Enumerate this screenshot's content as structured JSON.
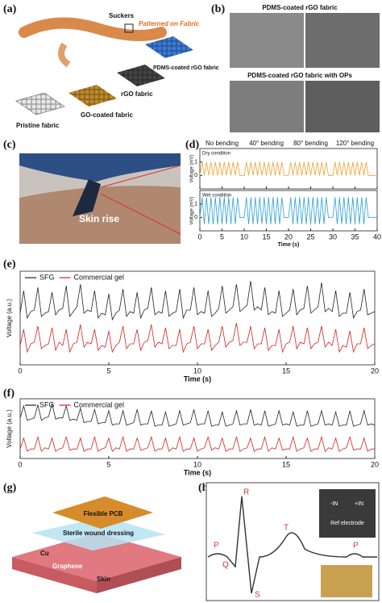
{
  "panel_labels": [
    "(a)",
    "(b)",
    "(c)",
    "(d)",
    "(e)",
    "(f)",
    "(g)",
    "(h)"
  ],
  "panel_a": {
    "labels": [
      "Suckers",
      "Patterned on Fabric",
      "PDMS-coated rGO fabric",
      "rGO fabric",
      "GO-coated fabric",
      "Pristine fabric"
    ]
  },
  "panel_b": {
    "titles": [
      "PDMS-coated rGO fabric",
      "PDMS-coated rGO fabric with OPs"
    ]
  },
  "panel_c": {
    "label": "Skin rise"
  },
  "panel_g": {
    "labels": [
      "Flexible PCB",
      "Sterile wound dressing",
      "Cu",
      "Graphene",
      "Skin"
    ]
  },
  "panel_h": {
    "waves": [
      "P",
      "Q",
      "R",
      "S",
      "T",
      "P"
    ],
    "inset": [
      "-IN",
      "+IN",
      "Ref electrode"
    ]
  },
  "chart_data": [
    {
      "type": "line",
      "segments": [
        "No bending",
        "40° bending",
        "80° bending",
        "120° bending"
      ],
      "xlabel": "Time (s)",
      "x": [
        0,
        0.5,
        1,
        1.5,
        2,
        2.5,
        3,
        3.5,
        4,
        4.5,
        5,
        5.5,
        6,
        6.5,
        7,
        7.5,
        8,
        8.5,
        9,
        9.5,
        10,
        10.5,
        11,
        11.5,
        12,
        12.5,
        13,
        13.5,
        14,
        14.5,
        15,
        15.5,
        16,
        16.5,
        17,
        17.5,
        18,
        18.5,
        19,
        19.5,
        20,
        20.5,
        21,
        21.5,
        22,
        22.5,
        23,
        23.5,
        24,
        24.5,
        25,
        25.5,
        26,
        26.5,
        27,
        27.5,
        28,
        28.5,
        29,
        29.5,
        30,
        30.5,
        31,
        31.5,
        32,
        32.5,
        33,
        33.5,
        34,
        34.5,
        35,
        35.5,
        36,
        36.5,
        37,
        37.5,
        38,
        38.5,
        39,
        39.5,
        40
      ],
      "xlim": [
        0,
        40
      ],
      "xticks": [
        0,
        5,
        10,
        15,
        20,
        25,
        30,
        35,
        40
      ],
      "subplots": [
        {
          "label": "Dry condition",
          "ylabel": "Voltage (mV)",
          "ylim": [
            -1,
            2
          ],
          "yticks": [
            0,
            1
          ],
          "series": [
            {
              "color": "#f0a030",
              "values": [
                0,
                1,
                0,
                1,
                0,
                1,
                0,
                1,
                0,
                1,
                0,
                1,
                0,
                1,
                0,
                1,
                0,
                1,
                0,
                0,
                0,
                1,
                0,
                1,
                0,
                1,
                0,
                1,
                0,
                1,
                0,
                1,
                0,
                1,
                0,
                1,
                0,
                1,
                0,
                0,
                0,
                1,
                0,
                1,
                0,
                1,
                0,
                1,
                0,
                1,
                0,
                1,
                0,
                1,
                0,
                1,
                0,
                1,
                0,
                0,
                0,
                1,
                0,
                1,
                0,
                1,
                0,
                1,
                0,
                1,
                0,
                1,
                0,
                1,
                0,
                1,
                0,
                0,
                0,
                0,
                0
              ]
            }
          ]
        },
        {
          "label": "Wet condition",
          "ylabel": "Voltage (mV)",
          "ylim": [
            -1,
            2
          ],
          "yticks": [
            0,
            1
          ],
          "series": [
            {
              "color": "#2a9fd8",
              "values": [
                0,
                1.5,
                -0.5,
                1.5,
                -0.5,
                1.5,
                -0.5,
                1.5,
                -0.5,
                1.5,
                -0.5,
                1.5,
                -0.5,
                1.5,
                -0.5,
                1.5,
                -0.5,
                1.5,
                0,
                0,
                0,
                1.5,
                -0.5,
                1.5,
                -0.5,
                1.5,
                -0.5,
                1.5,
                -0.5,
                1.5,
                -0.5,
                1.5,
                -0.5,
                1.5,
                -0.5,
                1.5,
                -0.5,
                1.5,
                0,
                0,
                0,
                1.5,
                -0.5,
                1.5,
                -0.5,
                1.5,
                -0.5,
                1.5,
                -0.5,
                1.5,
                -0.5,
                1.5,
                -0.5,
                1.5,
                -0.5,
                1.5,
                -0.5,
                1.5,
                0,
                0,
                0,
                1.5,
                -0.5,
                1.5,
                -0.5,
                1.5,
                -0.5,
                1.5,
                -0.5,
                1.5,
                -0.5,
                1.5,
                -0.5,
                1.5,
                -0.5,
                1.5,
                0,
                0,
                0,
                0,
                0
              ]
            }
          ]
        }
      ]
    },
    {
      "type": "line",
      "xlabel": "Time (s)",
      "ylabel": "Voltage (a.u.)",
      "legend": "top-left",
      "x": [
        0,
        0.2,
        0.4,
        0.6,
        0.8,
        1,
        1.2,
        1.4,
        1.6,
        1.8,
        2,
        2.2,
        2.4,
        2.6,
        2.8,
        3,
        3.2,
        3.4,
        3.6,
        3.8,
        4,
        4.2,
        4.4,
        4.6,
        4.8,
        5,
        5.2,
        5.4,
        5.6,
        5.8,
        6,
        6.2,
        6.4,
        6.6,
        6.8,
        7,
        7.2,
        7.4,
        7.6,
        7.8,
        8,
        8.2,
        8.4,
        8.6,
        8.8,
        9,
        9.2,
        9.4,
        9.6,
        9.8,
        10,
        10.2,
        10.4,
        10.6,
        10.8,
        11,
        11.2,
        11.4,
        11.6,
        11.8,
        12,
        12.2,
        12.4,
        12.6,
        12.8,
        13,
        13.2,
        13.4,
        13.6,
        13.8,
        14,
        14.2,
        14.4,
        14.6,
        14.8,
        15,
        15.2,
        15.4,
        15.6,
        15.8,
        16,
        16.2,
        16.4,
        16.6,
        16.8,
        17,
        17.2,
        17.4,
        17.6,
        17.8,
        18,
        18.2,
        18.4,
        18.6,
        18.8,
        19,
        19.2,
        19.4,
        19.6,
        19.8,
        20
      ],
      "xlim": [
        0,
        20
      ],
      "xticks": [
        0,
        5,
        10,
        15,
        20
      ],
      "ylim": [
        -0.6,
        2.3
      ],
      "series": [
        {
          "name": "SFG",
          "color": "#222222",
          "values": [
            1.0,
            1.7,
            0.85,
            1.05,
            1.1,
            1.8,
            0.9,
            1.0,
            1.05,
            1.65,
            0.95,
            1.1,
            1.15,
            1.85,
            0.9,
            1.05,
            1.2,
            1.9,
            1.0,
            1.1,
            1.05,
            1.7,
            0.85,
            1.0,
            0.95,
            1.6,
            0.8,
            1.0,
            1.1,
            1.75,
            0.9,
            1.05,
            1.0,
            1.65,
            0.85,
            1.1,
            1.15,
            1.8,
            0.95,
            1.05,
            1.0,
            1.7,
            0.9,
            1.0,
            1.05,
            1.75,
            0.85,
            1.1,
            1.1,
            1.8,
            0.95,
            1.05,
            1.0,
            1.7,
            0.9,
            1.0,
            1.15,
            1.85,
            1.0,
            1.1,
            1.2,
            1.9,
            1.05,
            1.15,
            1.25,
            2.0,
            1.1,
            1.2,
            1.1,
            1.8,
            0.95,
            1.05,
            1.0,
            1.7,
            0.9,
            1.0,
            1.1,
            1.75,
            0.95,
            1.1,
            1.15,
            1.85,
            1.0,
            1.1,
            1.2,
            1.95,
            1.05,
            1.15,
            1.05,
            1.7,
            0.9,
            1.0,
            1.0,
            1.65,
            0.85,
            1.05,
            1.1,
            1.75,
            0.95,
            1.0,
            1.05
          ]
        },
        {
          "name": "Commercial gel",
          "color": "#d62020",
          "values": [
            0.0,
            0.5,
            -0.2,
            0.05,
            0.1,
            0.6,
            -0.1,
            0.0,
            0.05,
            0.55,
            -0.15,
            0.1,
            0.0,
            0.5,
            -0.2,
            0.05,
            0.1,
            0.65,
            -0.05,
            0.1,
            0.05,
            0.5,
            -0.15,
            0.0,
            -0.05,
            0.45,
            -0.2,
            0.0,
            0.1,
            0.6,
            -0.1,
            0.05,
            0.05,
            0.5,
            -0.15,
            0.1,
            0.15,
            0.65,
            -0.05,
            0.1,
            0.05,
            0.55,
            -0.1,
            0.0,
            0.0,
            0.5,
            -0.2,
            0.05,
            0.1,
            0.6,
            -0.1,
            0.05,
            0.05,
            0.5,
            -0.15,
            0.0,
            0.1,
            0.6,
            -0.05,
            0.1,
            0.15,
            0.7,
            0.0,
            0.1,
            0.1,
            0.6,
            -0.1,
            0.05,
            0.05,
            0.55,
            -0.15,
            0.0,
            0.0,
            0.5,
            -0.2,
            0.05,
            0.1,
            0.6,
            -0.1,
            0.1,
            0.05,
            0.55,
            -0.1,
            0.05,
            0.1,
            0.6,
            -0.05,
            0.1,
            0.0,
            0.5,
            -0.2,
            0.0,
            -0.05,
            0.45,
            -0.2,
            0.05,
            0.05,
            0.55,
            -0.1,
            0.0,
            0.05
          ]
        }
      ]
    },
    {
      "type": "line",
      "xlabel": "Time (s)",
      "ylabel": "Voltage (a.u.)",
      "legend": "top-left",
      "x": [
        0,
        0.2,
        0.4,
        0.6,
        0.8,
        1,
        1.2,
        1.4,
        1.6,
        1.8,
        2,
        2.2,
        2.4,
        2.6,
        2.8,
        3,
        3.2,
        3.4,
        3.6,
        3.8,
        4,
        4.2,
        4.4,
        4.6,
        4.8,
        5,
        5.2,
        5.4,
        5.6,
        5.8,
        6,
        6.2,
        6.4,
        6.6,
        6.8,
        7,
        7.2,
        7.4,
        7.6,
        7.8,
        8,
        8.2,
        8.4,
        8.6,
        8.8,
        9,
        9.2,
        9.4,
        9.6,
        9.8,
        10,
        10.2,
        10.4,
        10.6,
        10.8,
        11,
        11.2,
        11.4,
        11.6,
        11.8,
        12,
        12.2,
        12.4,
        12.6,
        12.8,
        13,
        13.2,
        13.4,
        13.6,
        13.8,
        14,
        14.2,
        14.4,
        14.6,
        14.8,
        15,
        15.2,
        15.4,
        15.6,
        15.8,
        16,
        16.2,
        16.4,
        16.6,
        16.8,
        17,
        17.2,
        17.4,
        17.6,
        17.8,
        18,
        18.2,
        18.4,
        18.6,
        18.8,
        19,
        19.2,
        19.4,
        19.6,
        19.8,
        20
      ],
      "xlim": [
        0,
        20
      ],
      "xticks": [
        0,
        5,
        10,
        15,
        20
      ],
      "ylim": [
        -0.4,
        2.1
      ],
      "series": [
        {
          "name": "SFG",
          "color": "#222222",
          "values": [
            1.3,
            1.8,
            1.2,
            1.25,
            1.3,
            1.85,
            1.2,
            1.3,
            1.35,
            1.9,
            1.25,
            1.3,
            1.3,
            1.8,
            1.2,
            1.25,
            1.2,
            1.7,
            1.1,
            1.15,
            1.15,
            1.65,
            1.05,
            1.1,
            1.1,
            1.6,
            1.0,
            1.05,
            1.05,
            1.6,
            1.0,
            1.05,
            1.1,
            1.65,
            1.0,
            1.05,
            1.05,
            1.6,
            0.95,
            1.0,
            1.0,
            1.55,
            0.95,
            1.0,
            1.05,
            1.6,
            1.0,
            1.05,
            1.1,
            1.65,
            1.0,
            1.05,
            1.05,
            1.6,
            0.95,
            1.0,
            1.0,
            1.55,
            0.95,
            1.0,
            1.05,
            1.6,
            1.0,
            1.05,
            1.05,
            1.65,
            1.0,
            1.05,
            1.0,
            1.6,
            0.95,
            1.0,
            1.05,
            1.6,
            1.0,
            1.05,
            1.0,
            1.55,
            0.95,
            1.0,
            1.0,
            1.6,
            0.95,
            1.0,
            1.05,
            1.6,
            1.0,
            1.05,
            1.0,
            1.55,
            0.95,
            1.0,
            1.0,
            1.6,
            0.95,
            1.0,
            1.05,
            1.6,
            1.0,
            1.05,
            1.0
          ]
        },
        {
          "name": "Commercial gel",
          "color": "#d62020",
          "values": [
            0.0,
            0.45,
            -0.1,
            0.0,
            0.0,
            0.5,
            -0.1,
            0.05,
            0.0,
            0.45,
            -0.1,
            0.0,
            0.05,
            0.5,
            -0.05,
            0.0,
            0.0,
            0.45,
            -0.1,
            0.0,
            0.0,
            0.5,
            -0.1,
            0.0,
            0.05,
            0.45,
            -0.1,
            0.05,
            0.0,
            0.5,
            -0.1,
            0.0,
            0.0,
            0.45,
            -0.05,
            0.0,
            0.05,
            0.5,
            -0.1,
            0.0,
            0.0,
            0.45,
            -0.1,
            0.05,
            0.0,
            0.5,
            -0.1,
            0.0,
            0.0,
            0.45,
            -0.1,
            0.0,
            0.05,
            0.5,
            -0.05,
            0.05,
            0.0,
            0.45,
            -0.1,
            0.0,
            0.0,
            0.5,
            -0.1,
            0.0,
            0.05,
            0.45,
            -0.1,
            0.0,
            0.0,
            0.5,
            -0.1,
            0.05,
            0.0,
            0.45,
            -0.05,
            0.0,
            0.0,
            0.5,
            -0.1,
            0.0,
            0.05,
            0.45,
            -0.1,
            0.0,
            0.0,
            0.5,
            -0.1,
            0.05,
            0.0,
            0.45,
            -0.1,
            0.0,
            0.05,
            0.5,
            -0.05,
            0.0,
            0.0,
            0.45,
            -0.1,
            0.0,
            0.0
          ]
        }
      ]
    }
  ]
}
